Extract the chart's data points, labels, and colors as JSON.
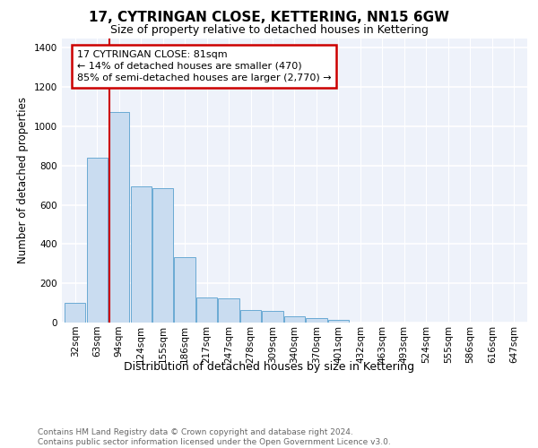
{
  "title": "17, CYTRINGAN CLOSE, KETTERING, NN15 6GW",
  "subtitle": "Size of property relative to detached houses in Kettering",
  "xlabel": "Distribution of detached houses by size in Kettering",
  "ylabel": "Number of detached properties",
  "footer_line1": "Contains HM Land Registry data © Crown copyright and database right 2024.",
  "footer_line2": "Contains public sector information licensed under the Open Government Licence v3.0.",
  "bar_labels": [
    "32sqm",
    "63sqm",
    "94sqm",
    "124sqm",
    "155sqm",
    "186sqm",
    "217sqm",
    "247sqm",
    "278sqm",
    "309sqm",
    "340sqm",
    "370sqm",
    "401sqm",
    "432sqm",
    "463sqm",
    "493sqm",
    "524sqm",
    "555sqm",
    "586sqm",
    "616sqm",
    "647sqm"
  ],
  "bar_values": [
    100,
    840,
    1075,
    695,
    685,
    335,
    130,
    125,
    65,
    60,
    30,
    25,
    15,
    0,
    0,
    0,
    0,
    0,
    0,
    0,
    0
  ],
  "bar_color": "#c9dcf0",
  "bar_edge_color": "#6aaad4",
  "annotation_text": "17 CYTRINGAN CLOSE: 81sqm\n← 14% of detached houses are smaller (470)\n85% of semi-detached houses are larger (2,770) →",
  "vline_color": "#cc0000",
  "annotation_box_color": "#cc0000",
  "ylim": [
    0,
    1450
  ],
  "yticks": [
    0,
    200,
    400,
    600,
    800,
    1000,
    1200,
    1400
  ],
  "bg_color": "#eef2fa",
  "grid_color": "#ffffff",
  "title_fontsize": 11,
  "subtitle_fontsize": 9,
  "xlabel_fontsize": 9,
  "ylabel_fontsize": 8.5,
  "tick_fontsize": 7.5,
  "annotation_fontsize": 8,
  "footer_fontsize": 6.5
}
